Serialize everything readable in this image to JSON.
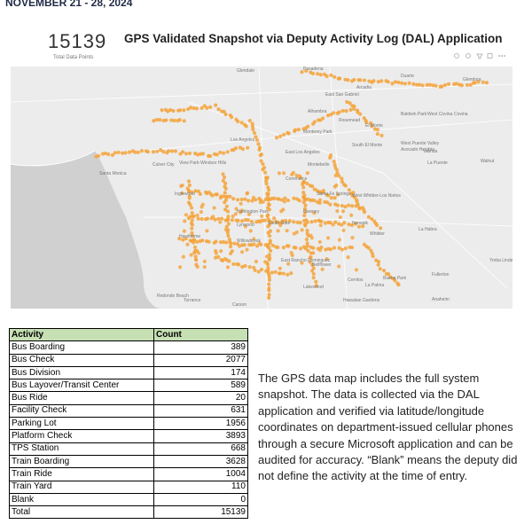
{
  "header": {
    "date": "NOVEMBER 21 - 28, 2024"
  },
  "card": {
    "total": "15139",
    "total_label": "Total Data Points",
    "title": "GPS Validated Snapshot via Deputy Activity Log (DAL) Application"
  },
  "map": {
    "labels": [
      "Glendale",
      "Pasadena",
      "Arcadia",
      "Duarte",
      "Glendora",
      "East San Gabriel",
      "Alhambra",
      "Rosemead",
      "El Monte",
      "Baldwin Park",
      "West Covina",
      "Covina",
      "Monterey Park",
      "South El Monte",
      "West Puente Valley",
      "Los Angeles",
      "Avocado Heights",
      "Valinda",
      "Walnut",
      "La Puente",
      "East Los Angeles",
      "Montebello",
      "Culver City",
      "Santa Monica",
      "View Park-Windsor Hills",
      "Commerce",
      "West Whittier-Los Nietos",
      "Inglewood",
      "Huntington Park",
      "South Gate",
      "Downey",
      "Santa Fe Springs",
      "Whittier",
      "Norwalk",
      "Hawthorne",
      "Willowbrook",
      "La Habra",
      "Lynwood",
      "Yorba Linda",
      "East Rancho Dominguez",
      "Bellflower",
      "Fullerton",
      "Cerritos",
      "Buena Park",
      "Lakewood",
      "La Palma",
      "Anaheim",
      "Redondo Beach",
      "Torrance",
      "Carson",
      "Hawaiian Gardens"
    ]
  },
  "table": {
    "header": [
      "Activity",
      "Count"
    ],
    "rows": [
      [
        "Bus Boarding",
        389
      ],
      [
        "Bus Check",
        2077
      ],
      [
        "Bus Division",
        174
      ],
      [
        "Bus Layover/Transit Center",
        589
      ],
      [
        "Bus Ride",
        20
      ],
      [
        "Facility Check",
        631
      ],
      [
        "Parking Lot",
        1956
      ],
      [
        "Platform Check",
        3893
      ],
      [
        "TPS Station",
        668
      ],
      [
        "Train Boarding",
        3628
      ],
      [
        "Train Ride",
        1004
      ],
      [
        "Train Yard",
        110
      ],
      [
        "Blank",
        0
      ],
      [
        "Total",
        15139
      ]
    ]
  },
  "note": "The GPS data map includes the full system snapshot. The data is collected via the DAL application and verified via latitude/longitude coordinates on department-issued cellular phones through a secure Microsoft application and can be audited for accuracy. “Blank” means the deputy did not define the activity at the time of entry."
}
